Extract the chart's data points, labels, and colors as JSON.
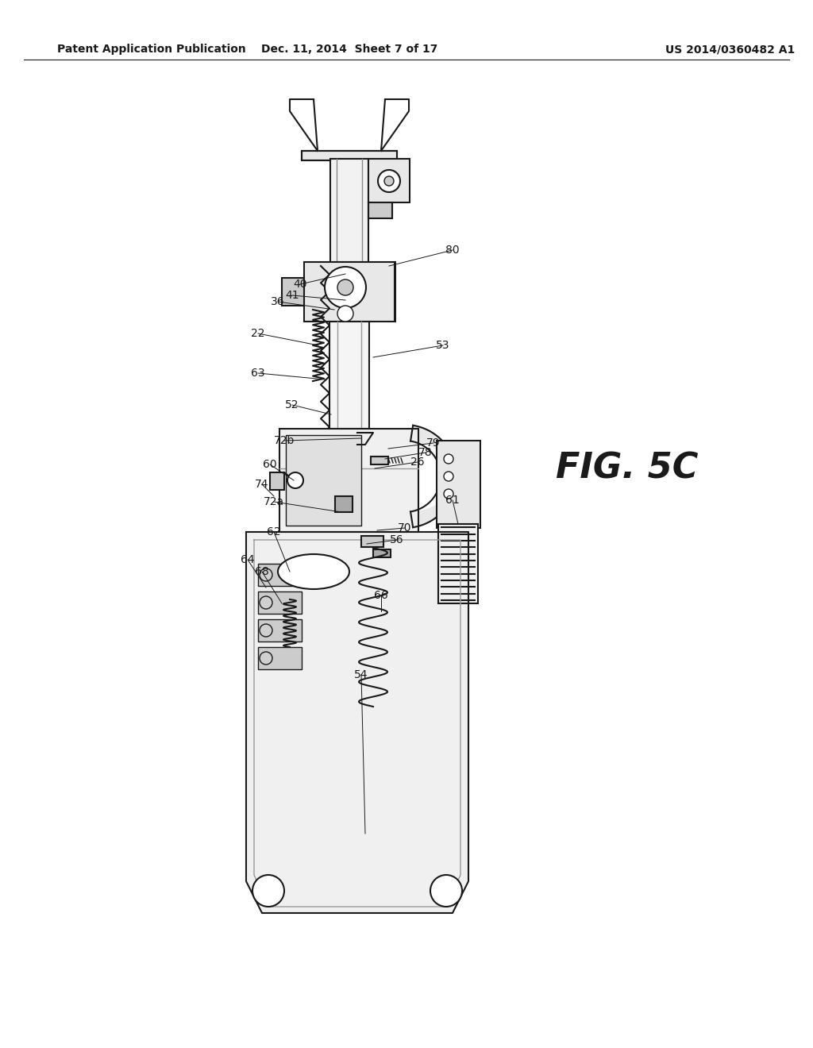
{
  "title_left": "Patent Application Publication",
  "title_mid": "Dec. 11, 2014  Sheet 7 of 17",
  "title_right": "US 2014/0360482 A1",
  "fig_label": "FIG. 5C",
  "bg_color": "#ffffff",
  "line_color": "#1a1a1a",
  "gray_light": "#e8e8e8",
  "gray_mid": "#cccccc",
  "gray_dark": "#aaaaaa",
  "header_fontsize": 10,
  "fig_fontsize": 32,
  "label_fontsize": 10
}
